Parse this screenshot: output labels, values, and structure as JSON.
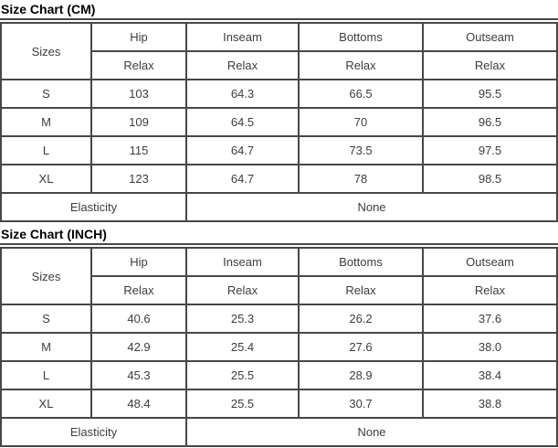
{
  "colors": {
    "border": "#474747",
    "cell_text": "#3d3d3d",
    "title_text": "#000000",
    "background": "#ffffff"
  },
  "chart_data": [
    {
      "type": "table",
      "title": "Size Chart (CM)",
      "unit": "CM",
      "corner_header": "Sizes",
      "measure_columns": [
        "Hip",
        "Inseam",
        "Bottoms",
        "Outseam"
      ],
      "fit_row": [
        "Relax",
        "Relax",
        "Relax",
        "Relax"
      ],
      "rows": [
        [
          "S",
          "103",
          "64.3",
          "66.5",
          "95.5"
        ],
        [
          "M",
          "109",
          "64.5",
          "70",
          "96.5"
        ],
        [
          "L",
          "115",
          "64.7",
          "73.5",
          "97.5"
        ],
        [
          "XL",
          "123",
          "64.7",
          "78",
          "98.5"
        ]
      ],
      "elasticity_label": "Elasticity",
      "elasticity_value": "None"
    },
    {
      "type": "table",
      "title": "Size Chart (INCH)",
      "unit": "INCH",
      "corner_header": "Sizes",
      "measure_columns": [
        "Hip",
        "Inseam",
        "Bottoms",
        "Outseam"
      ],
      "fit_row": [
        "Relax",
        "Relax",
        "Relax",
        "Relax"
      ],
      "rows": [
        [
          "S",
          "40.6",
          "25.3",
          "26.2",
          "37.6"
        ],
        [
          "M",
          "42.9",
          "25.4",
          "27.6",
          "38.0"
        ],
        [
          "L",
          "45.3",
          "25.5",
          "28.9",
          "38.4"
        ],
        [
          "XL",
          "48.4",
          "25.5",
          "30.7",
          "38.8"
        ]
      ],
      "elasticity_label": "Elasticity",
      "elasticity_value": "None"
    }
  ]
}
